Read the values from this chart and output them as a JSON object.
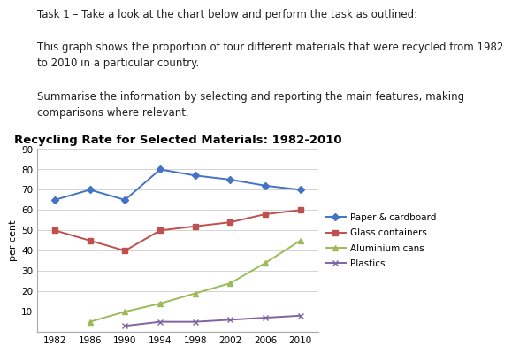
{
  "title": "Recycling Rate for Selected Materials: 1982-2010",
  "ylabel": "per cent",
  "years": [
    1982,
    1986,
    1990,
    1994,
    1998,
    2002,
    2006,
    2010
  ],
  "text_lines": [
    "Task 1 – Take a look at the chart below and perform the task as outlined:",
    "",
    "This graph shows the proportion of four different materials that were recycled from 1982",
    "to 2010 in a particular country.",
    "",
    "Summarise the information by selecting and reporting the main features, making",
    "comparisons where relevant."
  ],
  "series": [
    {
      "label": "Paper & cardboard",
      "values": [
        65,
        70,
        65,
        80,
        77,
        75,
        72,
        70
      ],
      "color": "#4472C4",
      "marker": "D",
      "linestyle": "-"
    },
    {
      "label": "Glass containers",
      "values": [
        50,
        45,
        40,
        50,
        52,
        54,
        58,
        60
      ],
      "color": "#C0504D",
      "marker": "s",
      "linestyle": "-"
    },
    {
      "label": "Aluminium cans",
      "values": [
        null,
        5,
        10,
        14,
        19,
        24,
        34,
        45
      ],
      "color": "#9BBB59",
      "marker": "^",
      "linestyle": "-"
    },
    {
      "label": "Plastics",
      "values": [
        null,
        null,
        3,
        5,
        5,
        6,
        7,
        8
      ],
      "color": "#8064A2",
      "marker": "x",
      "linestyle": "-"
    }
  ],
  "ylim": [
    0,
    90
  ],
  "yticks": [
    0,
    10,
    20,
    30,
    40,
    50,
    60,
    70,
    80,
    90
  ],
  "background_color": "#ffffff",
  "grid_color": "#cccccc",
  "text_fontsize": 8.5,
  "title_fontsize": 9.5
}
